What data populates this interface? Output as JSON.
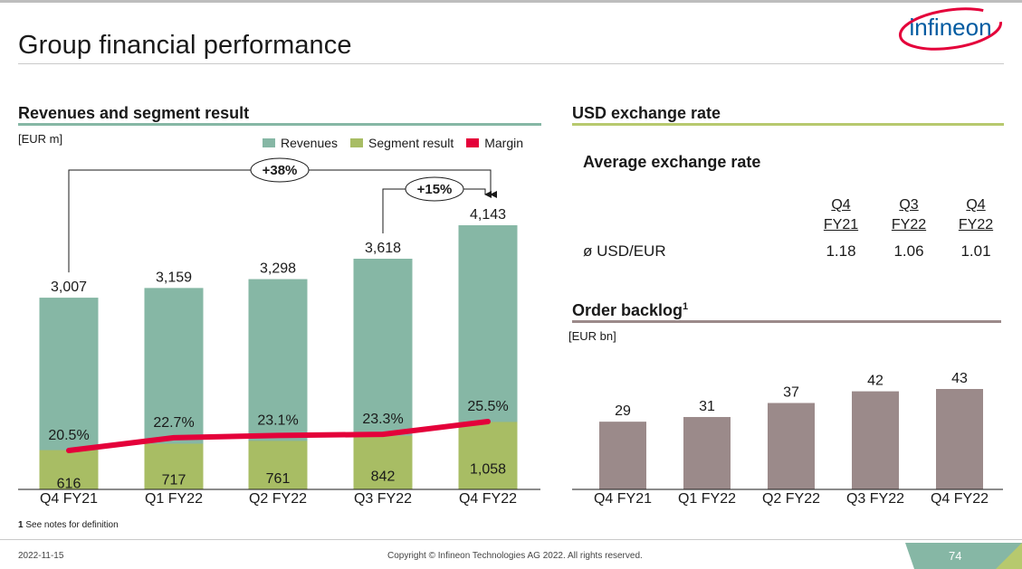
{
  "slide": {
    "title": "Group financial performance",
    "logo_text": "infineon",
    "footnote_number": "1",
    "footnote_text": "See notes for definition",
    "date": "2022-11-15",
    "copyright": "Copyright © Infineon Technologies AG 2022. All rights reserved.",
    "page_number": "74"
  },
  "colors": {
    "revenues": "#86b7a5",
    "segment_result": "#a8bd64",
    "margin": "#e4003a",
    "backlog": "#9b8a8a",
    "accent_rule_left": "#86b7a5",
    "accent_rule_right": "#b7c96e",
    "accent_rule_backlog": "#9b8a8a",
    "page_tab": "#86b7a5"
  },
  "revenues_section": {
    "title": "Revenues and segment result",
    "unit": "[EUR m]",
    "legend": [
      "Revenues",
      "Segment result",
      "Margin"
    ],
    "growth_yoy": "+38%",
    "growth_qoq": "+15%"
  },
  "fx_section": {
    "title": "USD exchange rate",
    "subtitle": "Average exchange rate",
    "columns": [
      {
        "line1": "Q4",
        "line2": "FY21"
      },
      {
        "line1": "Q3",
        "line2": "FY22"
      },
      {
        "line1": "Q4",
        "line2": "FY22"
      }
    ],
    "row_label": "ø USD/EUR",
    "values": [
      "1.18",
      "1.06",
      "1.01"
    ]
  },
  "backlog_section": {
    "title": "Order backlog",
    "superscript": "1",
    "unit": "[EUR bn]"
  },
  "chart_data": [
    {
      "type": "bar",
      "stacked": false,
      "title": "Revenues and segment result",
      "ylabel": "[EUR m]",
      "categories": [
        "Q4 FY21",
        "Q1 FY22",
        "Q2 FY22",
        "Q3 FY22",
        "Q4 FY22"
      ],
      "series": [
        {
          "name": "Revenues",
          "values": [
            3007,
            3159,
            3298,
            3618,
            4143
          ],
          "labels": [
            "3,007",
            "3,159",
            "3,298",
            "3,618",
            "4,143"
          ]
        },
        {
          "name": "Segment result",
          "values": [
            616,
            717,
            761,
            842,
            1058
          ],
          "labels": [
            "616",
            "717",
            "761",
            "842",
            "1,058"
          ]
        },
        {
          "name": "Margin",
          "type": "line",
          "values": [
            20.5,
            22.7,
            23.1,
            23.3,
            25.5
          ],
          "labels": [
            "20.5%",
            "22.7%",
            "23.1%",
            "23.3%",
            "25.5%"
          ]
        }
      ],
      "legend_position": "top-right",
      "ylim": [
        0,
        4143
      ],
      "grid": false
    },
    {
      "type": "bar",
      "title": "Order backlog",
      "ylabel": "[EUR bn]",
      "categories": [
        "Q4 FY21",
        "Q1 FY22",
        "Q2 FY22",
        "Q3 FY22",
        "Q4 FY22"
      ],
      "values": [
        29,
        31,
        37,
        42,
        43
      ],
      "ylim": [
        0,
        43
      ],
      "grid": false
    }
  ]
}
